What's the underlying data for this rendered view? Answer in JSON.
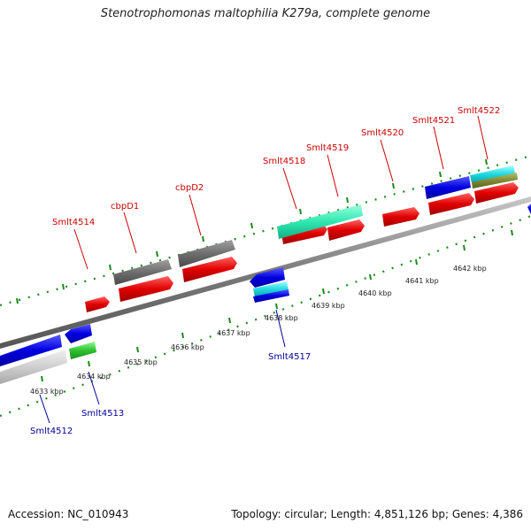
{
  "title": "Stenotrophomonas maltophilia K279a, complete genome",
  "footer": {
    "accession": "Accession: NC_010943",
    "summary": "Topology: circular; Length: 4,851,126 bp; Genes: 4,386"
  },
  "colors": {
    "label_forward": "#cc0000",
    "label_reverse": "#000099",
    "tick": "#1a8a1a",
    "backbone": "#777777"
  },
  "axis_labels": [
    "4633 kbp",
    "4634 kbp",
    "4635 kbp",
    "4636 kbp",
    "4637 kbp",
    "4638 kbp",
    "4639 kbp",
    "4640 kbp",
    "4641 kbp",
    "4642 kbp"
  ],
  "genes_forward": [
    {
      "name": "Smlt4514"
    },
    {
      "name": "cbpD1"
    },
    {
      "name": "cbpD2"
    },
    {
      "name": "Smlt4518"
    },
    {
      "name": "Smlt4519"
    },
    {
      "name": "Smlt4520"
    },
    {
      "name": "Smlt4521"
    },
    {
      "name": "Smlt4522"
    }
  ],
  "genes_reverse": [
    {
      "name": "Smlt4512"
    },
    {
      "name": "Smlt4513"
    },
    {
      "name": "Smlt4517"
    }
  ]
}
